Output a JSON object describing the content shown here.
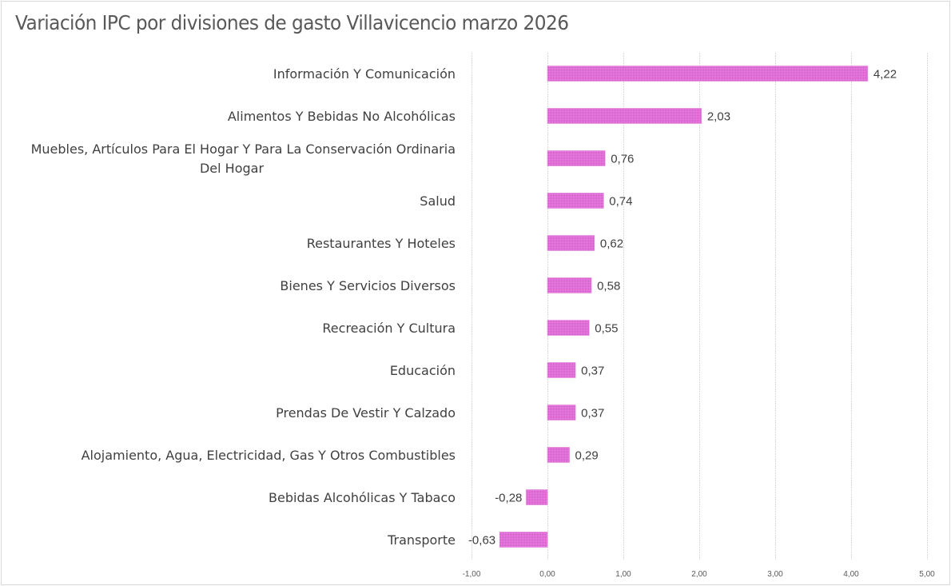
{
  "chart_data": {
    "type": "bar",
    "orientation": "horizontal",
    "title": "Variación IPC por divisiones de gasto Villavicencio marzo 2026",
    "xlabel": "",
    "ylabel": "",
    "xlim": [
      -1,
      5
    ],
    "xticks": [
      -1,
      0,
      1,
      2,
      3,
      4,
      5
    ],
    "xtick_labels": [
      "-1,00",
      "0,00",
      "1,00",
      "2,00",
      "3,00",
      "4,00",
      "5,00"
    ],
    "grid": true,
    "legend": "none",
    "bar_color": "#e070d8",
    "categories": [
      "Información Y Comunicación",
      "Alimentos Y Bebidas No Alcohólicas",
      "Muebles, Artículos Para El Hogar Y Para La Conservación Ordinaria Del Hogar",
      "Salud",
      "Restaurantes Y Hoteles",
      "Bienes Y Servicios Diversos",
      "Recreación Y Cultura",
      "Educación",
      "Prendas De Vestir Y Calzado",
      "Alojamiento, Agua, Electricidad, Gas Y Otros Combustibles",
      "Bebidas Alcohólicas Y Tabaco",
      "Transporte"
    ],
    "category_lines": [
      [
        "Información Y Comunicación"
      ],
      [
        "Alimentos Y Bebidas No Alcohólicas"
      ],
      [
        "Muebles, Artículos Para El Hogar Y Para La Conservación Ordinaria",
        "Del Hogar"
      ],
      [
        "Salud"
      ],
      [
        "Restaurantes Y Hoteles"
      ],
      [
        "Bienes Y Servicios Diversos"
      ],
      [
        "Recreación Y Cultura"
      ],
      [
        "Educación"
      ],
      [
        "Prendas De Vestir Y Calzado"
      ],
      [
        "Alojamiento, Agua, Electricidad, Gas Y Otros Combustibles"
      ],
      [
        "Bebidas Alcohólicas Y Tabaco"
      ],
      [
        "Transporte"
      ]
    ],
    "values": [
      4.22,
      2.03,
      0.76,
      0.74,
      0.62,
      0.58,
      0.55,
      0.37,
      0.37,
      0.29,
      -0.28,
      -0.63
    ],
    "data_labels": [
      "4,22",
      "2,03",
      "0,76",
      "0,74",
      "0,62",
      "0,58",
      "0,55",
      "0,37",
      "0,37",
      "0,29",
      "-0,28",
      "-0,63"
    ]
  }
}
